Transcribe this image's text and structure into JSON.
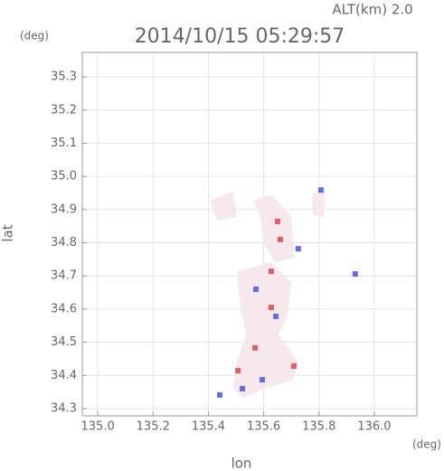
{
  "chart_data": {
    "type": "scatter",
    "title": "2014/10/15 05:29:57",
    "altitude_label": "ALT(km) 2.0",
    "xlabel": "lon",
    "ylabel": "lat",
    "x_unit": "(deg)",
    "y_unit": "(deg)",
    "xlim": [
      134.944,
      136.154
    ],
    "ylim": [
      34.278,
      35.374
    ],
    "xticks": [
      {
        "value": 135,
        "label": "135.0"
      },
      135.2,
      135.4,
      135.6,
      135.8,
      {
        "value": 136,
        "label": "136.0"
      }
    ],
    "yticks": [
      34.3,
      34.4,
      34.5,
      34.6,
      34.7,
      34.8,
      34.9,
      {
        "value": 35,
        "label": "35.0"
      },
      35.1,
      35.2,
      35.3
    ],
    "grid": true,
    "series": [
      {
        "color": "#e06060",
        "x": [
          135.65,
          135.627,
          135.507,
          135.709,
          135.66,
          135.569,
          135.627
        ],
        "y": [
          34.864,
          34.714,
          34.414,
          34.428,
          34.81,
          34.483,
          34.605
        ]
      },
      {
        "color": "#6070e0",
        "x": [
          135.441,
          135.523,
          135.931,
          135.644,
          135.595,
          135.807,
          135.725,
          135.572
        ],
        "y": [
          34.341,
          34.36,
          34.706,
          34.578,
          34.387,
          34.959,
          34.782,
          34.66
        ]
      }
    ]
  }
}
